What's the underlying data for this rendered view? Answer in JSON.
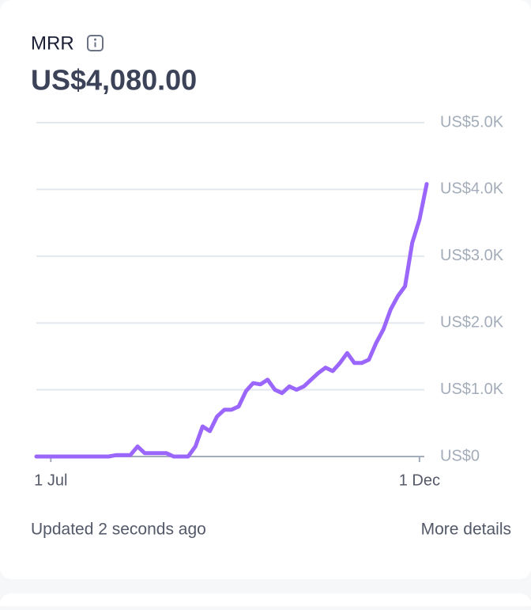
{
  "chart_data": {
    "type": "line",
    "title": "MRR",
    "subtitle": "US$4,080.00",
    "color": "#9b66fb",
    "categories": [
      null,
      null,
      "1 Jul",
      null,
      null,
      null,
      null,
      null,
      null,
      null,
      null,
      null,
      null,
      null,
      null,
      null,
      null,
      null,
      null,
      null,
      null,
      null,
      null,
      null,
      null,
      null,
      null,
      null,
      null,
      null,
      null,
      null,
      null,
      null,
      null,
      null,
      null,
      null,
      null,
      null,
      null,
      null,
      null,
      null,
      null,
      null,
      null,
      null,
      null,
      null,
      null,
      null,
      null,
      "1 Dec",
      null
    ],
    "values": [
      0,
      0,
      0,
      0,
      0,
      0,
      0,
      0,
      0,
      0,
      0,
      20,
      20,
      20,
      150,
      50,
      50,
      50,
      50,
      0,
      0,
      0,
      150,
      450,
      380,
      600,
      700,
      700,
      750,
      980,
      1100,
      1080,
      1150,
      1000,
      950,
      1050,
      1000,
      1050,
      1150,
      1250,
      1330,
      1280,
      1400,
      1550,
      1400,
      1400,
      1450,
      1700,
      1900,
      2200,
      2400,
      2550,
      3200,
      3550,
      4080
    ],
    "ylim": [
      0,
      5000
    ],
    "yticks": [
      {
        "value": 0,
        "label": "US$0"
      },
      {
        "value": 1000,
        "label": "US$1.0K"
      },
      {
        "value": 2000,
        "label": "US$2.0K"
      },
      {
        "value": 3000,
        "label": "US$3.0K"
      },
      {
        "value": 4000,
        "label": "US$4.0K"
      },
      {
        "value": 5000,
        "label": "US$5.0K"
      }
    ],
    "grid": true
  },
  "footer": {
    "status": "Updated 2 seconds ago",
    "link": "More details"
  }
}
